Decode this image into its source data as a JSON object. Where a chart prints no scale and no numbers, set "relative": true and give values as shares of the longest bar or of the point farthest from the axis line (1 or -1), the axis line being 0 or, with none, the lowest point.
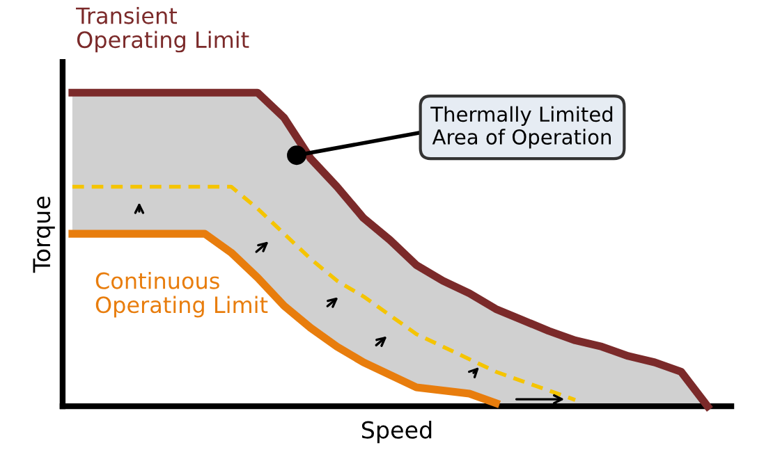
{
  "chart_data": {
    "type": "line",
    "relative": true,
    "xlabel": "Speed",
    "ylabel": "Torque",
    "categories": [
      null,
      null,
      null,
      null,
      null,
      null,
      null,
      null,
      null,
      null,
      null,
      null,
      null,
      null,
      null,
      null,
      null,
      null,
      null,
      null,
      null,
      null,
      null,
      null,
      null
    ],
    "series": [
      {
        "name": "Transient Operating Limit",
        "color": "#7b2a2a",
        "line_style": "solid",
        "values": [
          1.0,
          1.0,
          1.0,
          1.0,
          1.0,
          1.0,
          1.0,
          1.0,
          0.92,
          0.79,
          0.7,
          0.6,
          0.53,
          0.45,
          0.4,
          0.36,
          0.31,
          0.275,
          0.24,
          0.21,
          0.19,
          0.16,
          0.14,
          0.11,
          0.0
        ],
        "upper": [
          1.0,
          1.0,
          1.0,
          1.0,
          1.0,
          1.0,
          1.0,
          1.0,
          0.92,
          0.79,
          0.7,
          0.6,
          0.53,
          0.45,
          0.4,
          0.36,
          0.31,
          0.275,
          0.24,
          0.21,
          0.19,
          0.16,
          0.14,
          0.11,
          0.0
        ],
        "lower": [
          0.55,
          0.55,
          0.55,
          0.55,
          0.55,
          0.55,
          0.49,
          0.41,
          0.32,
          0.25,
          0.19,
          0.14,
          0.1,
          0.06,
          0.05,
          0.04,
          0.01,
          0.0,
          0.0,
          0.0,
          0.0,
          0.0,
          0.0,
          0.0,
          0.0
        ]
      },
      {
        "color": "#f5c400",
        "line_style": "dashed",
        "values": [
          0.7,
          0.7,
          0.7,
          0.7,
          0.7,
          0.7,
          0.7,
          0.63,
          0.55,
          0.47,
          0.4,
          0.35,
          0.29,
          0.23,
          0.19,
          0.15,
          0.11,
          0.08,
          0.05,
          0.02,
          null,
          null,
          null,
          null,
          null
        ]
      },
      {
        "name": "Continuous Operating Limit",
        "color": "#e87d0d",
        "line_style": "solid",
        "values": [
          0.55,
          0.55,
          0.55,
          0.55,
          0.55,
          0.55,
          0.49,
          0.41,
          0.32,
          0.25,
          0.19,
          0.14,
          0.1,
          0.06,
          0.05,
          0.04,
          0.01,
          null,
          null,
          null,
          null,
          null,
          null,
          null,
          null
        ]
      }
    ],
    "annotations": [
      "Thermally Limited Area of Operation"
    ]
  }
}
